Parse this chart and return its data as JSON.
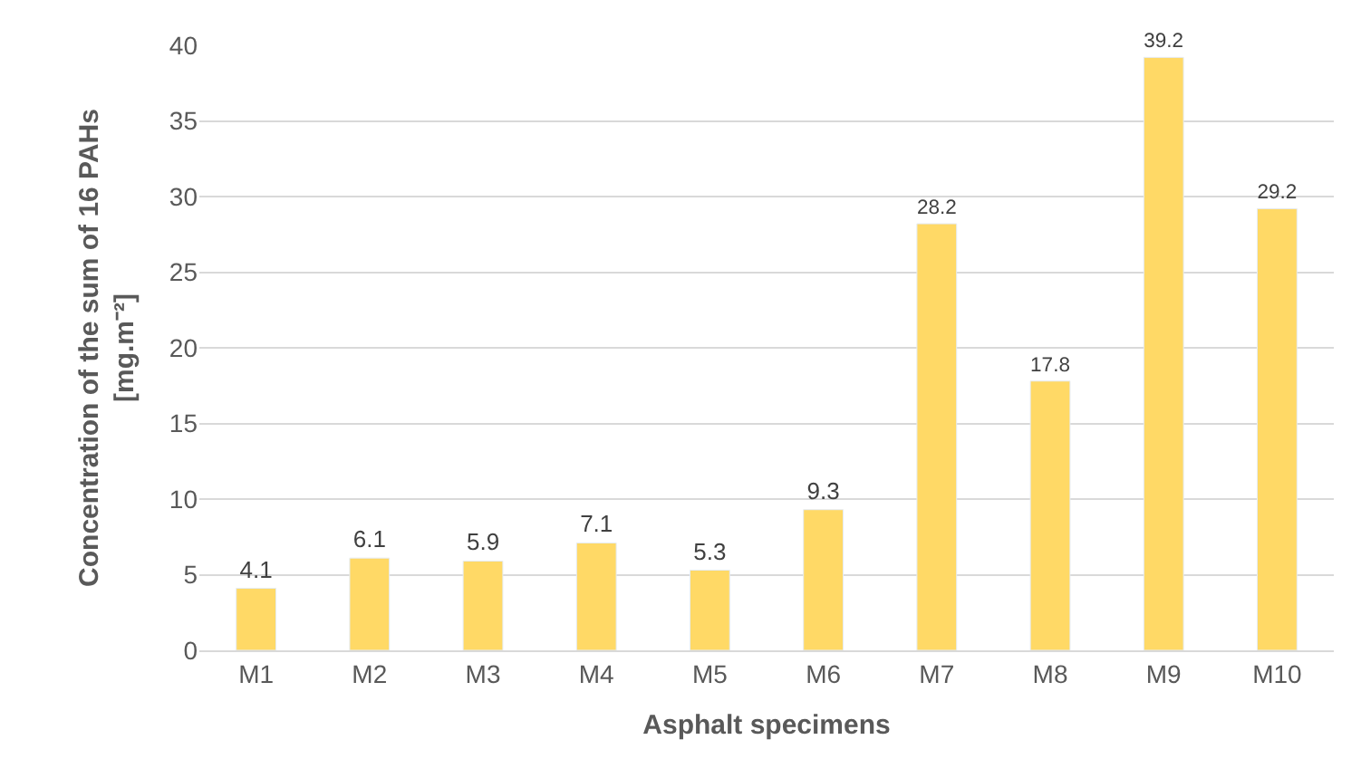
{
  "chart_data": {
    "type": "bar",
    "xlabel": "Asphalt specimens",
    "ylabel": "Concentration of the sum of 16 PAHs\n[mg.m⁻²]",
    "categories": [
      "M1",
      "M2",
      "M3",
      "M4",
      "M5",
      "M6",
      "M7",
      "M8",
      "M9",
      "M10"
    ],
    "values": [
      4.1,
      6.1,
      5.9,
      7.1,
      5.3,
      9.3,
      28.2,
      17.8,
      39.2,
      29.2
    ],
    "color": "#ffd966",
    "ylim": [
      0,
      40
    ],
    "yticks": [
      0,
      5,
      10,
      15,
      20,
      25,
      30,
      35,
      40
    ],
    "grid": "y",
    "data_labels": true,
    "legend": false
  }
}
